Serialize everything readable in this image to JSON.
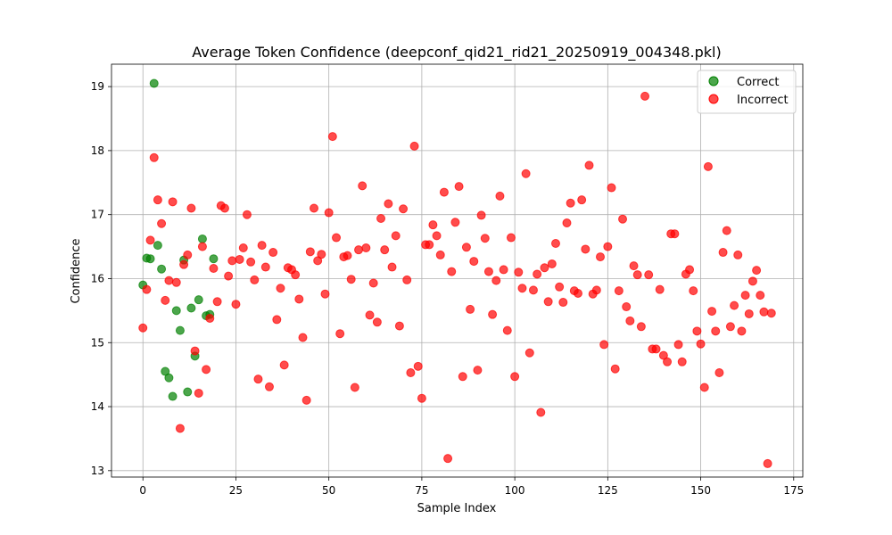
{
  "chart_data": {
    "type": "scatter",
    "title": "Average Token Confidence (deepconf_qid21_rid21_20250919_004348.pkl)",
    "xlabel": "Sample Index",
    "ylabel": "Confidence",
    "xlim": [
      -8.45,
      177.45
    ],
    "ylim": [
      12.9,
      19.35
    ],
    "xticks": [
      0,
      25,
      50,
      75,
      100,
      125,
      150,
      175
    ],
    "yticks": [
      13,
      14,
      15,
      16,
      17,
      18,
      19
    ],
    "grid": true,
    "legend_position": "top-right",
    "series": [
      {
        "name": "Correct",
        "color": "#008000",
        "points": [
          [
            0,
            15.9
          ],
          [
            1,
            16.32
          ],
          [
            2,
            16.31
          ],
          [
            3,
            19.05
          ],
          [
            4,
            16.52
          ],
          [
            5,
            16.15
          ],
          [
            6,
            14.55
          ],
          [
            7,
            14.45
          ],
          [
            8,
            14.16
          ],
          [
            9,
            15.5
          ],
          [
            10,
            15.19
          ],
          [
            11,
            16.29
          ],
          [
            12,
            14.23
          ],
          [
            13,
            15.54
          ],
          [
            14,
            14.79
          ],
          [
            15,
            15.67
          ],
          [
            16,
            16.62
          ],
          [
            17,
            15.42
          ],
          [
            18,
            15.44
          ],
          [
            19,
            16.31
          ]
        ]
      },
      {
        "name": "Incorrect",
        "color": "#ff0000",
        "points": [
          [
            0,
            15.23
          ],
          [
            1,
            15.83
          ],
          [
            2,
            16.6
          ],
          [
            3,
            17.89
          ],
          [
            4,
            17.23
          ],
          [
            5,
            16.86
          ],
          [
            6,
            15.66
          ],
          [
            7,
            15.97
          ],
          [
            8,
            17.2
          ],
          [
            9,
            15.94
          ],
          [
            10,
            13.66
          ],
          [
            11,
            16.22
          ],
          [
            12,
            16.37
          ],
          [
            13,
            17.1
          ],
          [
            14,
            14.87
          ],
          [
            15,
            14.21
          ],
          [
            16,
            16.5
          ],
          [
            17,
            14.58
          ],
          [
            18,
            15.38
          ],
          [
            19,
            16.16
          ],
          [
            20,
            15.64
          ],
          [
            21,
            17.14
          ],
          [
            22,
            17.1
          ],
          [
            23,
            16.04
          ],
          [
            24,
            16.28
          ],
          [
            25,
            15.6
          ],
          [
            26,
            16.3
          ],
          [
            27,
            16.48
          ],
          [
            28,
            17.0
          ],
          [
            29,
            16.26
          ],
          [
            30,
            15.98
          ],
          [
            31,
            14.43
          ],
          [
            32,
            16.52
          ],
          [
            33,
            16.18
          ],
          [
            34,
            14.31
          ],
          [
            35,
            16.41
          ],
          [
            36,
            15.36
          ],
          [
            37,
            15.85
          ],
          [
            38,
            14.65
          ],
          [
            39,
            16.17
          ],
          [
            40,
            16.14
          ],
          [
            41,
            16.06
          ],
          [
            42,
            15.68
          ],
          [
            43,
            15.08
          ],
          [
            44,
            14.1
          ],
          [
            45,
            16.42
          ],
          [
            46,
            17.1
          ],
          [
            47,
            16.28
          ],
          [
            48,
            16.38
          ],
          [
            49,
            15.76
          ],
          [
            50,
            17.03
          ],
          [
            51,
            18.22
          ],
          [
            52,
            16.64
          ],
          [
            53,
            15.14
          ],
          [
            54,
            16.34
          ],
          [
            55,
            16.36
          ],
          [
            56,
            15.99
          ],
          [
            57,
            14.3
          ],
          [
            58,
            16.45
          ],
          [
            59,
            17.45
          ],
          [
            60,
            16.48
          ],
          [
            61,
            15.43
          ],
          [
            62,
            15.93
          ],
          [
            63,
            15.32
          ],
          [
            64,
            16.94
          ],
          [
            65,
            16.45
          ],
          [
            66,
            17.17
          ],
          [
            67,
            16.18
          ],
          [
            68,
            16.67
          ],
          [
            69,
            15.26
          ],
          [
            70,
            17.09
          ],
          [
            71,
            15.98
          ],
          [
            72,
            14.53
          ],
          [
            73,
            18.07
          ],
          [
            74,
            14.63
          ],
          [
            75,
            14.13
          ],
          [
            76,
            16.53
          ],
          [
            77,
            16.53
          ],
          [
            78,
            16.84
          ],
          [
            79,
            16.67
          ],
          [
            80,
            16.37
          ],
          [
            81,
            17.35
          ],
          [
            82,
            13.19
          ],
          [
            83,
            16.11
          ],
          [
            84,
            16.88
          ],
          [
            85,
            17.44
          ],
          [
            86,
            14.47
          ],
          [
            87,
            16.49
          ],
          [
            88,
            15.52
          ],
          [
            89,
            16.27
          ],
          [
            90,
            14.57
          ],
          [
            91,
            16.99
          ],
          [
            92,
            16.63
          ],
          [
            93,
            16.11
          ],
          [
            94,
            15.44
          ],
          [
            95,
            15.97
          ],
          [
            96,
            17.29
          ],
          [
            97,
            16.14
          ],
          [
            98,
            15.19
          ],
          [
            99,
            16.64
          ],
          [
            100,
            14.47
          ],
          [
            101,
            16.1
          ],
          [
            102,
            15.85
          ],
          [
            103,
            17.64
          ],
          [
            104,
            14.84
          ],
          [
            105,
            15.82
          ],
          [
            106,
            16.07
          ],
          [
            107,
            13.91
          ],
          [
            108,
            16.17
          ],
          [
            109,
            15.64
          ],
          [
            110,
            16.23
          ],
          [
            111,
            16.55
          ],
          [
            112,
            15.87
          ],
          [
            113,
            15.63
          ],
          [
            114,
            16.87
          ],
          [
            115,
            17.18
          ],
          [
            116,
            15.81
          ],
          [
            117,
            15.77
          ],
          [
            118,
            17.23
          ],
          [
            119,
            16.46
          ],
          [
            120,
            17.77
          ],
          [
            121,
            15.76
          ],
          [
            122,
            15.82
          ],
          [
            123,
            16.34
          ],
          [
            124,
            14.97
          ],
          [
            125,
            16.5
          ],
          [
            126,
            17.42
          ],
          [
            127,
            14.59
          ],
          [
            128,
            15.81
          ],
          [
            129,
            16.93
          ],
          [
            130,
            15.56
          ],
          [
            131,
            15.34
          ],
          [
            132,
            16.2
          ],
          [
            133,
            16.06
          ],
          [
            134,
            15.25
          ],
          [
            135,
            18.85
          ],
          [
            136,
            16.06
          ],
          [
            137,
            14.9
          ],
          [
            138,
            14.9
          ],
          [
            139,
            15.83
          ],
          [
            140,
            14.8
          ],
          [
            141,
            14.7
          ],
          [
            142,
            16.7
          ],
          [
            143,
            16.7
          ],
          [
            144,
            14.97
          ],
          [
            145,
            14.7
          ],
          [
            146,
            16.07
          ],
          [
            147,
            16.14
          ],
          [
            148,
            15.81
          ],
          [
            149,
            15.18
          ],
          [
            150,
            14.98
          ],
          [
            151,
            14.3
          ],
          [
            152,
            17.75
          ],
          [
            153,
            15.49
          ],
          [
            154,
            15.18
          ],
          [
            155,
            14.53
          ],
          [
            156,
            16.41
          ],
          [
            157,
            16.75
          ],
          [
            158,
            15.25
          ],
          [
            159,
            15.58
          ],
          [
            160,
            16.37
          ],
          [
            161,
            15.18
          ],
          [
            162,
            15.74
          ],
          [
            163,
            15.45
          ],
          [
            164,
            15.96
          ],
          [
            165,
            16.13
          ],
          [
            166,
            15.74
          ],
          [
            167,
            15.48
          ],
          [
            168,
            13.11
          ],
          [
            169,
            15.46
          ]
        ]
      }
    ]
  }
}
